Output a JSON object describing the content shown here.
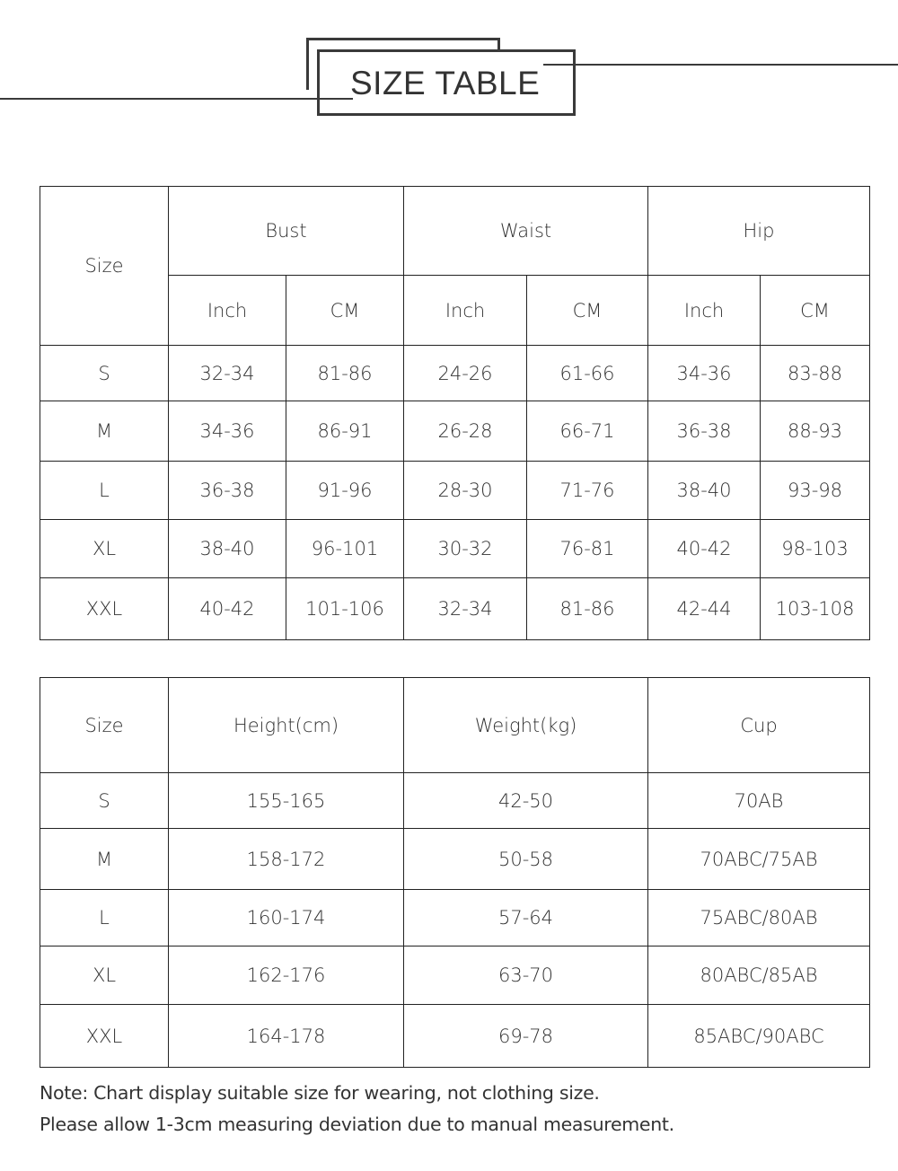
{
  "header": {
    "title": "SIZE TABLE"
  },
  "table1": {
    "size_label": "Size",
    "groups": [
      "Bust",
      "Waist",
      "Hip"
    ],
    "units": [
      "Inch",
      "CM",
      "Inch",
      "CM",
      "Inch",
      "CM"
    ],
    "rows": [
      [
        "S",
        "32-34",
        "81-86",
        "24-26",
        "61-66",
        "34-36",
        "83-88"
      ],
      [
        "M",
        "34-36",
        "86-91",
        "26-28",
        "66-71",
        "36-38",
        "88-93"
      ],
      [
        "L",
        "36-38",
        "91-96",
        "28-30",
        "71-76",
        "38-40",
        "93-98"
      ],
      [
        "XL",
        "38-40",
        "96-101",
        "30-32",
        "76-81",
        "40-42",
        "98-103"
      ],
      [
        "XXL",
        "40-42",
        "101-106",
        "32-34",
        "81-86",
        "42-44",
        "103-108"
      ]
    ]
  },
  "table2": {
    "headers": [
      "Size",
      "Height(cm)",
      "Weight(kg)",
      "Cup"
    ],
    "rows": [
      [
        "S",
        "155-165",
        "42-50",
        "70AB"
      ],
      [
        "M",
        "158-172",
        "50-58",
        "70ABC/75AB"
      ],
      [
        "L",
        "160-174",
        "57-64",
        "75ABC/80AB"
      ],
      [
        "XL",
        "162-176",
        "63-70",
        "80ABC/85AB"
      ],
      [
        "XXL",
        "164-178",
        "69-78",
        "85ABC/90ABC"
      ]
    ]
  },
  "note": {
    "label": "Note:",
    "line1": "Chart display suitable size for wearing, not clothing size.",
    "line2": "Please allow 1-3cm measuring deviation due to manual measurement."
  }
}
